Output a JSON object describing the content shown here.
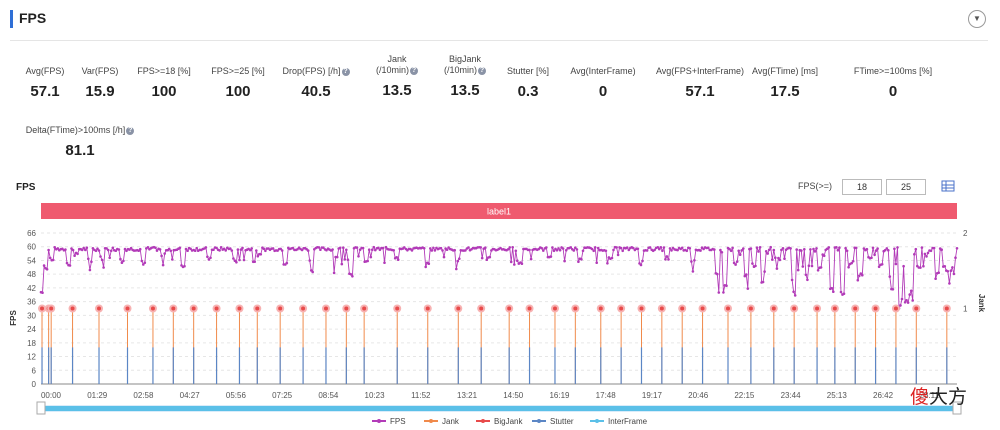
{
  "header": {
    "title": "FPS"
  },
  "metrics": [
    {
      "label": "Avg(FPS)",
      "value": "57.1"
    },
    {
      "label": "Var(FPS)",
      "value": "15.9"
    },
    {
      "label": "FPS>=18 [%]",
      "value": "100"
    },
    {
      "label": "FPS>=25 [%]",
      "value": "100"
    },
    {
      "label": "Drop(FPS) [/h]",
      "value": "40.5",
      "help": true
    },
    {
      "label": "Jank",
      "label2": "(/10min)",
      "value": "13.5",
      "help": true
    },
    {
      "label": "BigJank",
      "label2": "(/10min)",
      "value": "13.5",
      "help": true
    },
    {
      "label": "Stutter [%]",
      "value": "0.3"
    },
    {
      "label": "Avg(InterFrame)",
      "value": "0"
    },
    {
      "label": "Avg(FPS+InterFrame)",
      "value": "57.1"
    },
    {
      "label": "Avg(FTime) [ms]",
      "value": "17.5"
    },
    {
      "label": "FTime>=100ms [%]",
      "value": "0"
    },
    {
      "label": "Delta(FTime)>100ms [/h]",
      "value": "81.1",
      "help": true
    }
  ],
  "chart_header": {
    "title": "FPS",
    "fps_threshold_label": "FPS(>=)",
    "fps_threshold_1": "18",
    "fps_threshold_2": "25"
  },
  "watermark": {
    "part1": "傻",
    "part2": "大方"
  },
  "chart_data": {
    "type": "line",
    "label_band": "label1",
    "x_tick_labels": [
      "00:00",
      "01:29",
      "02:58",
      "04:27",
      "05:56",
      "07:25",
      "08:54",
      "10:23",
      "11:52",
      "13:21",
      "14:50",
      "16:19",
      "17:48",
      "19:17",
      "20:46",
      "22:15",
      "23:44",
      "25:13",
      "26:42",
      "28:11"
    ],
    "x_range_seconds": [
      0,
      1800
    ],
    "ylabel_left": "FPS",
    "ylabel_right": "Jank",
    "ylim_left": [
      0,
      66
    ],
    "y_ticks_left": [
      0,
      6,
      12,
      18,
      24,
      30,
      36,
      42,
      48,
      54,
      60,
      66
    ],
    "ylim_right": [
      0,
      2
    ],
    "y_ticks_right": [
      1,
      2
    ],
    "legend_position": "bottom",
    "legend": [
      {
        "name": "FPS",
        "color": "#b23bb8"
      },
      {
        "name": "Jank",
        "color": "#f08a4b"
      },
      {
        "name": "BigJank",
        "color": "#e84a4a"
      },
      {
        "name": "Stutter",
        "color": "#5b86c5"
      },
      {
        "name": "InterFrame",
        "color": "#5bc0e8"
      }
    ],
    "fps_baseline": 59,
    "fps_dips": [
      [
        0,
        40
      ],
      [
        8,
        51
      ],
      [
        22,
        55
      ],
      [
        55,
        52
      ],
      [
        70,
        57
      ],
      [
        95,
        54
      ],
      [
        120,
        55
      ],
      [
        160,
        54
      ],
      [
        200,
        53
      ],
      [
        240,
        56
      ],
      [
        280,
        52
      ],
      [
        330,
        55
      ],
      [
        380,
        54
      ],
      [
        430,
        56
      ],
      [
        480,
        53
      ],
      [
        530,
        55
      ],
      [
        580,
        56
      ],
      [
        610,
        48
      ],
      [
        640,
        54
      ],
      [
        700,
        55
      ],
      [
        760,
        52
      ],
      [
        820,
        54
      ],
      [
        880,
        55
      ],
      [
        940,
        53
      ],
      [
        1000,
        56
      ],
      [
        1060,
        54
      ],
      [
        1120,
        55
      ],
      [
        1180,
        53
      ],
      [
        1230,
        55
      ],
      [
        1280,
        54
      ],
      [
        1330,
        48
      ],
      [
        1345,
        43
      ],
      [
        1365,
        53
      ],
      [
        1385,
        47
      ],
      [
        1400,
        52
      ],
      [
        1420,
        50
      ],
      [
        1445,
        56
      ],
      [
        1480,
        46
      ],
      [
        1505,
        52
      ],
      [
        1530,
        50
      ],
      [
        1555,
        42
      ],
      [
        1575,
        40
      ],
      [
        1590,
        52
      ],
      [
        1610,
        48
      ],
      [
        1630,
        55
      ],
      [
        1650,
        52
      ],
      [
        1670,
        47
      ],
      [
        1690,
        38
      ],
      [
        1700,
        36
      ],
      [
        1710,
        40
      ],
      [
        1725,
        51
      ],
      [
        1740,
        57
      ],
      [
        1760,
        48
      ],
      [
        1775,
        52
      ],
      [
        1785,
        49
      ],
      [
        1795,
        55
      ]
    ],
    "jank_events_seconds": [
      2,
      15,
      20,
      62,
      114,
      170,
      220,
      260,
      300,
      345,
      390,
      425,
      470,
      515,
      560,
      600,
      635,
      700,
      760,
      820,
      865,
      920,
      960,
      1010,
      1050,
      1100,
      1140,
      1180,
      1220,
      1260,
      1300,
      1350,
      1395,
      1440,
      1480,
      1525,
      1560,
      1600,
      1640,
      1680,
      1720,
      1780
    ],
    "jank_value": 1
  }
}
